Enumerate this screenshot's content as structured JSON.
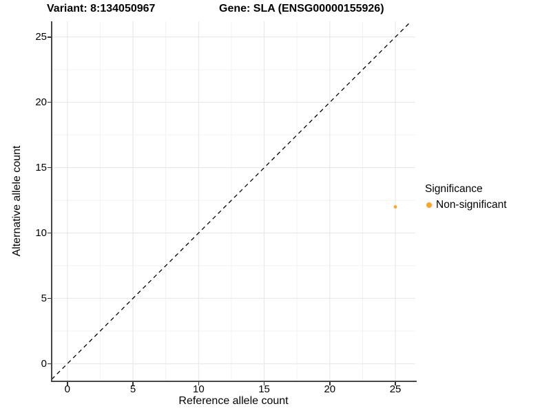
{
  "titles": {
    "variant": "Variant: 8:134050967",
    "gene": "Gene: SLA (ENSG00000155926)"
  },
  "legend": {
    "title": "Significance",
    "items": [
      {
        "label": "Non-significant",
        "color": "#FFA320"
      }
    ]
  },
  "axes": {
    "x": {
      "label": "Reference allele count"
    },
    "y": {
      "label": "Alternative allele count"
    }
  },
  "colors": {
    "background": "#ffffff",
    "major_grid": "#e5e5e5",
    "minor_grid": "#f2f2f2",
    "spine": "#474747",
    "reference_line": "#000000",
    "point": "#FFA320",
    "text": "#000000"
  },
  "chart_data": {
    "type": "scatter",
    "title": "Variant: 8:134050967   Gene: SLA (ENSG00000155926)",
    "xlabel": "Reference allele count",
    "ylabel": "Alternative allele count",
    "xlim": [
      -1.2,
      26.52
    ],
    "ylim": [
      -1.3,
      26.2
    ],
    "x_ticks": [
      0,
      5,
      10,
      15,
      20,
      25
    ],
    "y_ticks": [
      0,
      5,
      10,
      15,
      20,
      25
    ],
    "x_minor_ticks": [
      2.5,
      7.5,
      12.5,
      17.5,
      22.5
    ],
    "y_minor_ticks": [
      2.5,
      7.5,
      12.5,
      17.5,
      22.5
    ],
    "grid": true,
    "legend_position": "right",
    "series": [
      {
        "name": "Non-significant",
        "color": "#FFA320",
        "points": [
          {
            "x": 25,
            "y": 12
          }
        ]
      }
    ],
    "reference_line": {
      "equation": "y = x",
      "style": "dashed",
      "color": "#000000",
      "from": {
        "x": -1.2,
        "y": -1.2
      },
      "to": {
        "x": 26.2,
        "y": 26.2
      }
    }
  }
}
